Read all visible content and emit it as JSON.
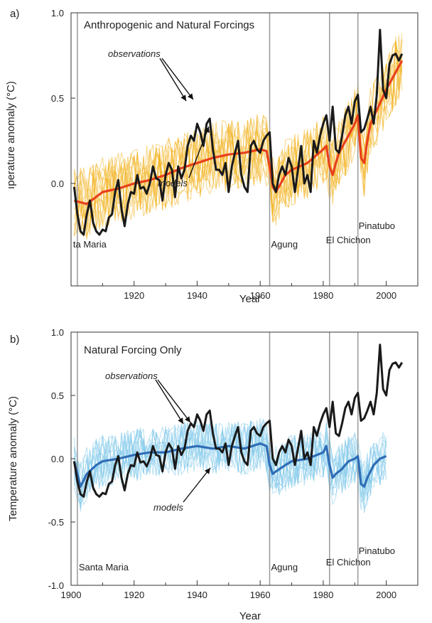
{
  "colors": {
    "observations": "#1a1a1a",
    "anthropogenic_mean": "#e8401c",
    "anthropogenic_ensemble": "#f2b21f",
    "natural_mean": "#2f6db5",
    "natural_ensemble": "#7fc8ea",
    "volcano_line": "#9a9a9a",
    "axis": "#333333"
  },
  "chart_data": [
    {
      "type": "line",
      "panel_letter": "a)",
      "title": "Anthropogenic and Natural Forcings",
      "xlabel": "Year",
      "ylabel": "Temperature anomaly (°C)",
      "ylabel_visible": "ıperature anomaly (°C)",
      "xlim": [
        1900,
        2010
      ],
      "ylim": [
        -0.6,
        1.0
      ],
      "xticks": [
        1920,
        1940,
        1960,
        1980,
        2000
      ],
      "xtick_labels": [
        "1920",
        "1940",
        "1960",
        "1980",
        "2000"
      ],
      "yticks": [
        0.0,
        0.5,
        1.0
      ],
      "ytick_labels": [
        "0.0",
        "0.5",
        "1.0"
      ],
      "annotations": {
        "observations": "observations",
        "models": "models"
      },
      "volcanoes": [
        {
          "name": "ta Maria",
          "year": 1902,
          "line": true
        },
        {
          "name": "Agung",
          "year": 1963,
          "line": true
        },
        {
          "name": "El Chichon",
          "year": 1982,
          "line": true
        },
        {
          "name": "Pinatubo",
          "year": 1991,
          "line": true
        }
      ],
      "series": [
        {
          "name": "observations",
          "role": "observations",
          "x": [
            1901,
            1902,
            1903,
            1904,
            1905,
            1906,
            1907,
            1908,
            1909,
            1910,
            1911,
            1912,
            1913,
            1914,
            1915,
            1916,
            1917,
            1918,
            1919,
            1920,
            1921,
            1922,
            1923,
            1924,
            1925,
            1926,
            1927,
            1928,
            1929,
            1930,
            1931,
            1932,
            1933,
            1934,
            1935,
            1936,
            1937,
            1938,
            1939,
            1940,
            1941,
            1942,
            1943,
            1944,
            1945,
            1946,
            1947,
            1948,
            1949,
            1950,
            1951,
            1952,
            1953,
            1954,
            1955,
            1956,
            1957,
            1958,
            1959,
            1960,
            1961,
            1962,
            1963,
            1964,
            1965,
            1966,
            1967,
            1968,
            1969,
            1970,
            1971,
            1972,
            1973,
            1974,
            1975,
            1976,
            1977,
            1978,
            1979,
            1980,
            1981,
            1982,
            1983,
            1984,
            1985,
            1986,
            1987,
            1988,
            1989,
            1990,
            1991,
            1992,
            1993,
            1994,
            1995,
            1996,
            1997,
            1998,
            1999,
            2000,
            2001,
            2002,
            2003,
            2004,
            2005
          ],
          "values": [
            -0.02,
            -0.18,
            -0.28,
            -0.3,
            -0.18,
            -0.1,
            -0.23,
            -0.28,
            -0.3,
            -0.27,
            -0.28,
            -0.2,
            -0.18,
            -0.05,
            0.02,
            -0.15,
            -0.25,
            -0.12,
            -0.05,
            -0.06,
            0.05,
            -0.03,
            -0.02,
            -0.06,
            0.0,
            0.1,
            0.03,
            0.02,
            -0.1,
            0.05,
            0.12,
            0.08,
            -0.08,
            0.1,
            0.03,
            0.08,
            0.22,
            0.28,
            0.25,
            0.35,
            0.3,
            0.22,
            0.35,
            0.38,
            0.2,
            0.08,
            0.08,
            0.05,
            0.12,
            -0.05,
            0.1,
            0.18,
            0.25,
            0.05,
            -0.02,
            -0.05,
            0.22,
            0.25,
            0.2,
            0.18,
            0.25,
            0.28,
            0.3,
            0.0,
            -0.05,
            0.05,
            0.1,
            0.05,
            0.15,
            0.1,
            -0.05,
            0.08,
            0.22,
            0.0,
            0.05,
            -0.05,
            0.25,
            0.18,
            0.28,
            0.35,
            0.4,
            0.25,
            0.45,
            0.2,
            0.18,
            0.28,
            0.4,
            0.45,
            0.35,
            0.48,
            0.52,
            0.3,
            0.32,
            0.38,
            0.45,
            0.35,
            0.52,
            0.9,
            0.55,
            0.5,
            0.7,
            0.75,
            0.76,
            0.72,
            0.76
          ]
        },
        {
          "name": "models",
          "role": "model-mean",
          "x": [
            1901,
            1905,
            1910,
            1915,
            1920,
            1925,
            1930,
            1935,
            1940,
            1945,
            1950,
            1955,
            1960,
            1962,
            1963,
            1964,
            1965,
            1968,
            1970,
            1975,
            1980,
            1981,
            1982,
            1983,
            1984,
            1985,
            1988,
            1990,
            1991,
            1992,
            1993,
            1994,
            1995,
            2000,
            2005
          ],
          "values": [
            -0.1,
            -0.12,
            -0.05,
            -0.03,
            0.0,
            0.02,
            0.05,
            0.09,
            0.12,
            0.15,
            0.17,
            0.18,
            0.2,
            0.19,
            0.1,
            -0.02,
            -0.05,
            0.05,
            0.08,
            0.12,
            0.2,
            0.22,
            0.1,
            0.05,
            0.12,
            0.18,
            0.28,
            0.35,
            0.4,
            0.15,
            0.12,
            0.25,
            0.35,
            0.55,
            0.72
          ]
        }
      ]
    },
    {
      "type": "line",
      "panel_letter": "b)",
      "title": "Natural Forcing Only",
      "xlabel": "Year",
      "ylabel": "Temperature anomaly (°C)",
      "xlim": [
        1900,
        2010
      ],
      "ylim": [
        -1.0,
        1.0
      ],
      "xticks": [
        1900,
        1920,
        1940,
        1960,
        1980,
        2000
      ],
      "xtick_labels": [
        "1900",
        "1920",
        "1940",
        "1960",
        "1980",
        "2000"
      ],
      "yticks": [
        -1.0,
        -0.5,
        0.0,
        0.5,
        1.0
      ],
      "ytick_labels": [
        "-1.0",
        "-0.5",
        "0.0",
        "0.5",
        "1.0"
      ],
      "annotations": {
        "observations": "observations",
        "models": "models"
      },
      "volcanoes": [
        {
          "name": "Santa Maria",
          "year": 1902,
          "line": true
        },
        {
          "name": "Agung",
          "year": 1963,
          "line": true
        },
        {
          "name": "El Chichon",
          "year": 1982,
          "line": true
        },
        {
          "name": "Pinatubo",
          "year": 1991,
          "line": true
        }
      ],
      "series": [
        {
          "name": "observations",
          "role": "observations",
          "x": [
            1901,
            1902,
            1903,
            1904,
            1905,
            1906,
            1907,
            1908,
            1909,
            1910,
            1911,
            1912,
            1913,
            1914,
            1915,
            1916,
            1917,
            1918,
            1919,
            1920,
            1921,
            1922,
            1923,
            1924,
            1925,
            1926,
            1927,
            1928,
            1929,
            1930,
            1931,
            1932,
            1933,
            1934,
            1935,
            1936,
            1937,
            1938,
            1939,
            1940,
            1941,
            1942,
            1943,
            1944,
            1945,
            1946,
            1947,
            1948,
            1949,
            1950,
            1951,
            1952,
            1953,
            1954,
            1955,
            1956,
            1957,
            1958,
            1959,
            1960,
            1961,
            1962,
            1963,
            1964,
            1965,
            1966,
            1967,
            1968,
            1969,
            1970,
            1971,
            1972,
            1973,
            1974,
            1975,
            1976,
            1977,
            1978,
            1979,
            1980,
            1981,
            1982,
            1983,
            1984,
            1985,
            1986,
            1987,
            1988,
            1989,
            1990,
            1991,
            1992,
            1993,
            1994,
            1995,
            1996,
            1997,
            1998,
            1999,
            2000,
            2001,
            2002,
            2003,
            2004,
            2005
          ],
          "values": [
            -0.02,
            -0.18,
            -0.28,
            -0.3,
            -0.18,
            -0.1,
            -0.23,
            -0.28,
            -0.3,
            -0.27,
            -0.28,
            -0.2,
            -0.18,
            -0.05,
            0.02,
            -0.15,
            -0.25,
            -0.12,
            -0.05,
            -0.06,
            0.05,
            -0.03,
            -0.02,
            -0.06,
            0.0,
            0.1,
            0.03,
            0.02,
            -0.1,
            0.05,
            0.12,
            0.08,
            -0.08,
            0.1,
            0.03,
            0.08,
            0.22,
            0.28,
            0.25,
            0.35,
            0.3,
            0.22,
            0.35,
            0.38,
            0.2,
            0.08,
            0.08,
            0.05,
            0.12,
            -0.05,
            0.1,
            0.18,
            0.25,
            0.05,
            -0.02,
            -0.05,
            0.22,
            0.25,
            0.2,
            0.18,
            0.25,
            0.28,
            0.3,
            0.0,
            -0.05,
            0.05,
            0.1,
            0.05,
            0.15,
            0.1,
            -0.05,
            0.08,
            0.22,
            0.0,
            0.05,
            -0.05,
            0.25,
            0.18,
            0.28,
            0.35,
            0.4,
            0.25,
            0.45,
            0.2,
            0.18,
            0.28,
            0.4,
            0.45,
            0.35,
            0.48,
            0.52,
            0.3,
            0.32,
            0.38,
            0.45,
            0.35,
            0.52,
            0.9,
            0.55,
            0.5,
            0.7,
            0.75,
            0.76,
            0.72,
            0.76
          ]
        },
        {
          "name": "models",
          "role": "model-mean",
          "x": [
            1901,
            1902,
            1903,
            1905,
            1908,
            1910,
            1915,
            1920,
            1925,
            1930,
            1935,
            1940,
            1945,
            1950,
            1955,
            1960,
            1962,
            1963,
            1964,
            1965,
            1968,
            1970,
            1975,
            1980,
            1981,
            1982,
            1983,
            1984,
            1986,
            1988,
            1990,
            1991,
            1992,
            1993,
            1994,
            1996,
            1998,
            2000
          ],
          "values": [
            -0.02,
            -0.12,
            -0.22,
            -0.12,
            -0.05,
            -0.02,
            0.0,
            0.03,
            0.05,
            0.05,
            0.08,
            0.1,
            0.08,
            0.1,
            0.08,
            0.12,
            0.1,
            -0.05,
            -0.12,
            -0.1,
            -0.05,
            -0.02,
            0.0,
            0.05,
            0.1,
            -0.05,
            -0.15,
            -0.12,
            -0.08,
            -0.02,
            0.0,
            0.02,
            -0.2,
            -0.22,
            -0.15,
            -0.05,
            0.0,
            0.02
          ]
        }
      ]
    }
  ]
}
